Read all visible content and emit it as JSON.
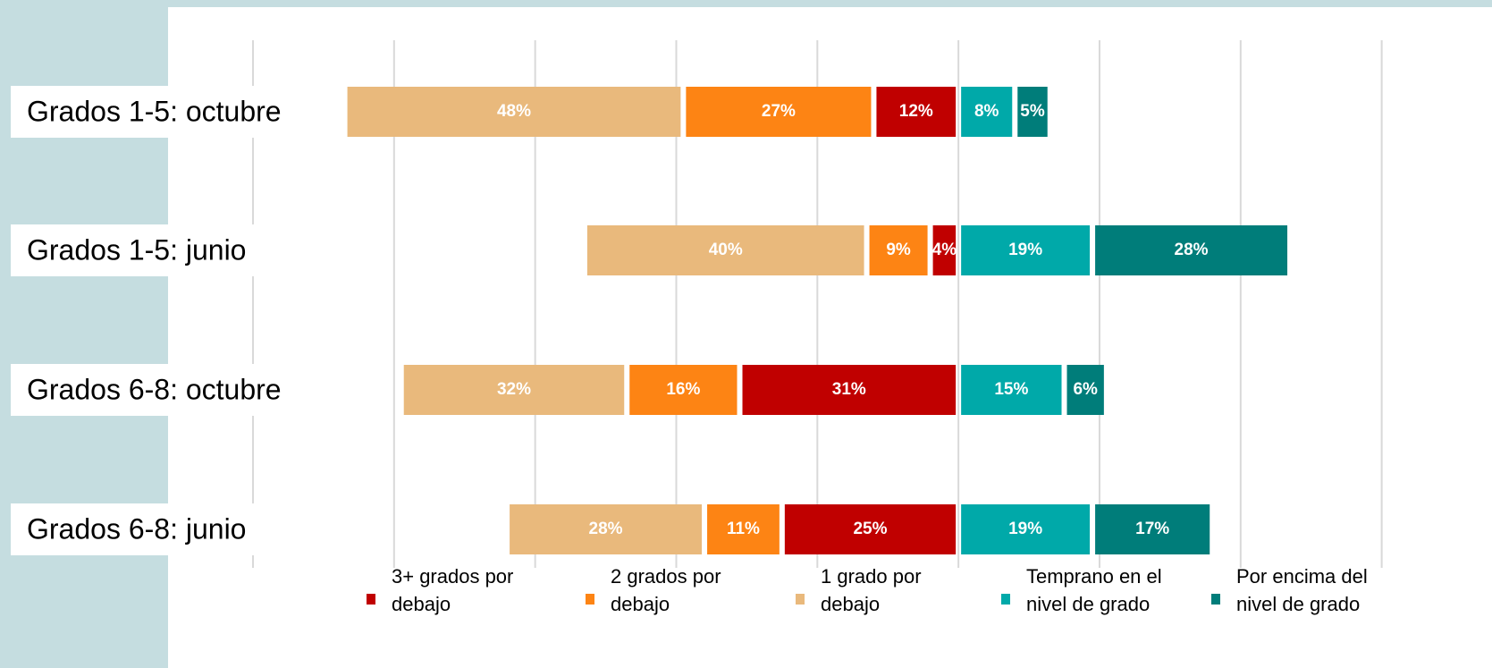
{
  "chart_data": {
    "type": "diverging_bar",
    "categories": [
      "Grados 1-5: octubre",
      "Grados 1-5: junio",
      "Grados 6-8: octubre",
      "Grados 6-8: junio"
    ],
    "series": [
      {
        "name": "3+ grados por debajo",
        "color": "#c00000",
        "direction": "left",
        "values": [
          12,
          4,
          31,
          25
        ],
        "value_labels": [
          "12%",
          "4%",
          "31%",
          "25%"
        ]
      },
      {
        "name": "2 grados por debajo",
        "color": "#fd8414",
        "direction": "left",
        "values": [
          27,
          9,
          16,
          11
        ],
        "value_labels": [
          "27%",
          "9%",
          "16%",
          "11%"
        ]
      },
      {
        "name": "1 grado por debajo",
        "color": "#e9b97c",
        "direction": "left",
        "values": [
          48,
          40,
          32,
          28
        ],
        "value_labels": [
          "48%",
          "40%",
          "32%",
          "28%"
        ]
      },
      {
        "name": "Temprano en el nivel de grado",
        "color": "#00a9a9",
        "direction": "right",
        "values": [
          8,
          19,
          15,
          19
        ],
        "value_labels": [
          "8%",
          "19%",
          "15%",
          "19%"
        ]
      },
      {
        "name": "Por encima del nivel de grado",
        "color": "#007d7a",
        "direction": "right",
        "values": [
          5,
          28,
          6,
          17
        ],
        "value_labels": [
          "5%",
          "28%",
          "6%",
          "17%"
        ]
      }
    ],
    "xlim": [
      -100,
      75
    ],
    "xticks": [
      -100,
      -80,
      -60,
      -40,
      -20,
      0,
      20,
      40,
      60
    ],
    "grid": true
  }
}
